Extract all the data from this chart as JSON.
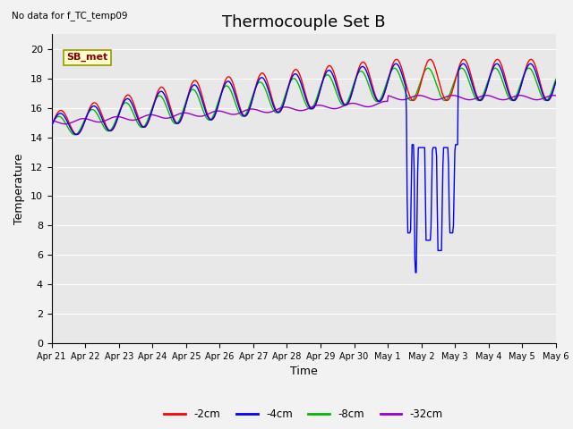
{
  "title": "Thermocouple Set B",
  "no_data_text": "No data for f_TC_temp09",
  "xlabel": "Time",
  "ylabel": "Temperature",
  "ylim": [
    0,
    21
  ],
  "yticks": [
    0,
    2,
    4,
    6,
    8,
    10,
    12,
    14,
    16,
    18,
    20
  ],
  "x_tick_labels": [
    "Apr 21",
    "Apr 22",
    "Apr 23",
    "Apr 24",
    "Apr 25",
    "Apr 26",
    "Apr 27",
    "Apr 28",
    "Apr 29",
    "Apr 30",
    "May 1",
    "May 2",
    "May 3",
    "May 4",
    "May 5",
    "May 6"
  ],
  "legend_label": "SB_met",
  "line_colors": {
    "-2cm": "#ff0000",
    "-4cm": "#0000ff",
    "-8cm": "#00bb00",
    "-32cm": "#9900cc"
  },
  "background_color": "#e8e8e8",
  "grid_color": "#ffffff",
  "title_fontsize": 13,
  "axis_fontsize": 9,
  "tick_fontsize": 8
}
